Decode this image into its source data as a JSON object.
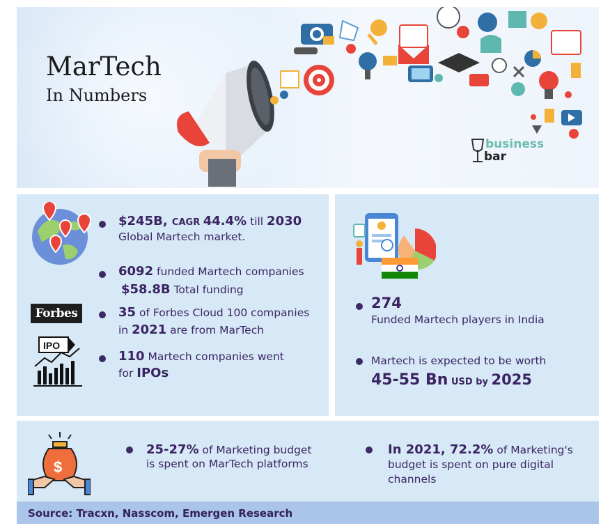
{
  "header": {
    "title": "MarTech",
    "subtitle": "In Numbers",
    "brand_line1": "business",
    "brand_line2": "bar"
  },
  "stats_left": [
    {
      "l1a": "$245B, ",
      "l1b": "CAGR ",
      "l1c": "44.4%",
      "l1d": " till ",
      "l1e": "2030",
      "l2": "Global Martech market."
    },
    {
      "l1a": "6092",
      "l1b": " funded Martech companies",
      "l2a": "$58.8B",
      "l2b": " Total funding"
    },
    {
      "l1a": "35",
      "l1b": " of Forbes Cloud 100 companies",
      "l2a": "in ",
      "l2b": "2021",
      "l2c": " are from MarTech"
    },
    {
      "l1a": "110",
      "l1b": " Martech companies went",
      "l2a": "for ",
      "l2b": "IPOs"
    }
  ],
  "logos": {
    "forbes": "Forbes",
    "ipo": "IPO"
  },
  "stats_right": [
    {
      "value": "274",
      "label": "Funded Martech players in India"
    },
    {
      "line1": "Martech is expected to be worth",
      "value": "45-55 Bn",
      "unit": " USD by ",
      "year": "2025"
    }
  ],
  "stats_bottom": [
    {
      "l1a": "25-27%",
      "l1b": " of Marketing budget",
      "l2": "is spent on MarTech platforms"
    },
    {
      "l1a": "In 2021, 72.2%",
      "l1b": " of Marketing's",
      "l2": "budget is spent on pure digital",
      "l3": "channels"
    }
  ],
  "source": "Source: Tracxn, Nasscom, Emergen Research",
  "colors": {
    "panel": "#d7e9f7",
    "text": "#3b2462",
    "accent_red": "#e8443a",
    "brand_teal": "#6fbcb0",
    "source_bar": "#aac4ea"
  }
}
